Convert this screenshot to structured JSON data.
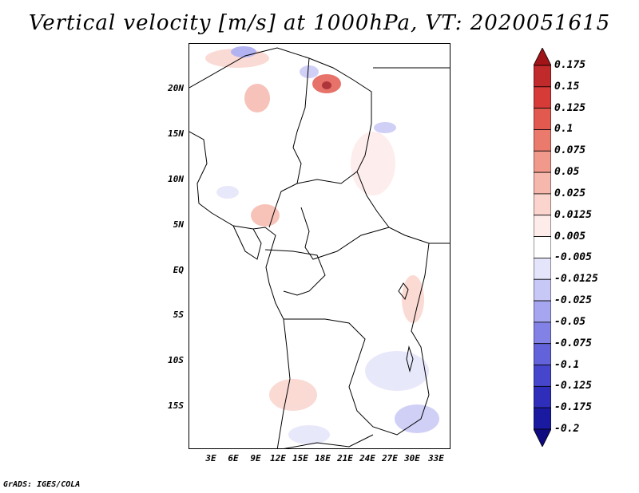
{
  "title": "Vertical velocity [m/s] at 1000hPa, VT: 2020051615",
  "footer": "GrADS: IGES/COLA",
  "map": {
    "lat_labels": [
      "20N",
      "15N",
      "10N",
      "5N",
      "EQ",
      "5S",
      "10S",
      "15S"
    ],
    "lon_labels": [
      "3E",
      "6E",
      "9E",
      "12E",
      "15E",
      "18E",
      "21E",
      "24E",
      "27E",
      "30E",
      "33E"
    ]
  },
  "colorbar": {
    "labels": [
      "0.175",
      "0.15",
      "0.125",
      "0.1",
      "0.075",
      "0.05",
      "0.025",
      "0.0125",
      "0.005",
      "-0.005",
      "-0.0125",
      "-0.025",
      "-0.05",
      "-0.075",
      "-0.1",
      "-0.125",
      "-0.175",
      "-0.2"
    ],
    "colors": [
      "#a11418",
      "#c12a2a",
      "#d63b38",
      "#e25a4f",
      "#ea7a6c",
      "#f19a8c",
      "#f6b8ad",
      "#fad4cd",
      "#fdecea",
      "#ffffff",
      "#e4e4fb",
      "#c8c8f6",
      "#a6a6f0",
      "#8282e6",
      "#6262da",
      "#4646cc",
      "#2e2ebb",
      "#1a1aa0",
      "#100a80"
    ]
  }
}
